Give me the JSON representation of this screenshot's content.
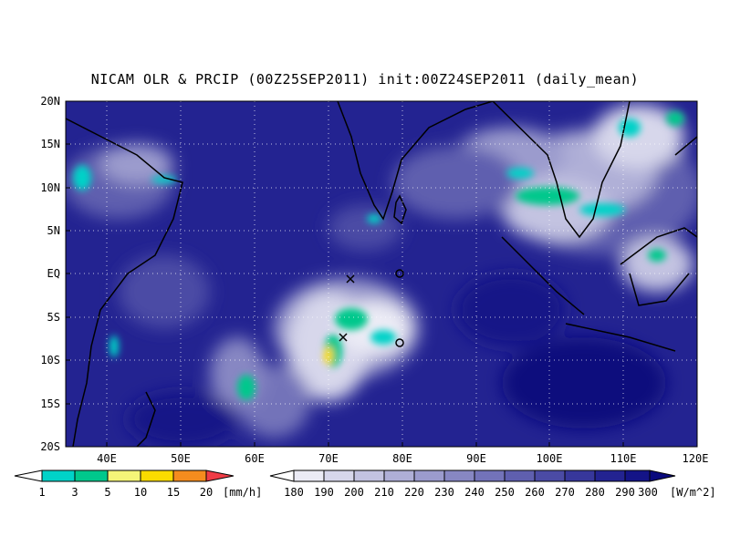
{
  "title": "NICAM OLR & PRCIP (00Z25SEP2011) init:00Z24SEP2011 (daily_mean)",
  "lat_ticks": [
    "20N",
    "15N",
    "10N",
    "5N",
    "EQ",
    "5S",
    "10S",
    "15S",
    "20S"
  ],
  "lon_ticks": [
    "40E",
    "50E",
    "60E",
    "70E",
    "80E",
    "90E",
    "100E",
    "110E",
    "120E"
  ],
  "map_extent": {
    "lon": [
      35,
      120
    ],
    "lat": [
      -20,
      20
    ]
  },
  "precip_legend": {
    "unit": "[mm/h]",
    "labels": [
      "1",
      "3",
      "5",
      "10",
      "15",
      "20"
    ],
    "colors": [
      "#ffffff",
      "#00d2c8",
      "#00c88c",
      "#f5f578",
      "#fadc00",
      "#f58c1e",
      "#f03c46"
    ]
  },
  "olr_legend": {
    "unit": "[W/m^2]",
    "labels": [
      "180",
      "190",
      "200",
      "210",
      "220",
      "230",
      "240",
      "250",
      "260",
      "270",
      "280",
      "290",
      "300"
    ],
    "colors": [
      "#ffffff",
      "#ebebf5",
      "#d7d7eb",
      "#c3c3e1",
      "#afafd7",
      "#9b9bcd",
      "#8787c3",
      "#7373b9",
      "#5f5faf",
      "#4b4ba5",
      "#37379b",
      "#232391",
      "#141487",
      "#0a0a7d"
    ]
  },
  "markers": [
    {
      "symbol": "×",
      "lon": 73,
      "lat": -0.7
    },
    {
      "symbol": "×",
      "lon": 72.3,
      "lat": -7.4
    },
    {
      "symbol": "o",
      "lon": 80,
      "lat": 0
    },
    {
      "symbol": "o",
      "lon": 80,
      "lat": -8
    }
  ]
}
